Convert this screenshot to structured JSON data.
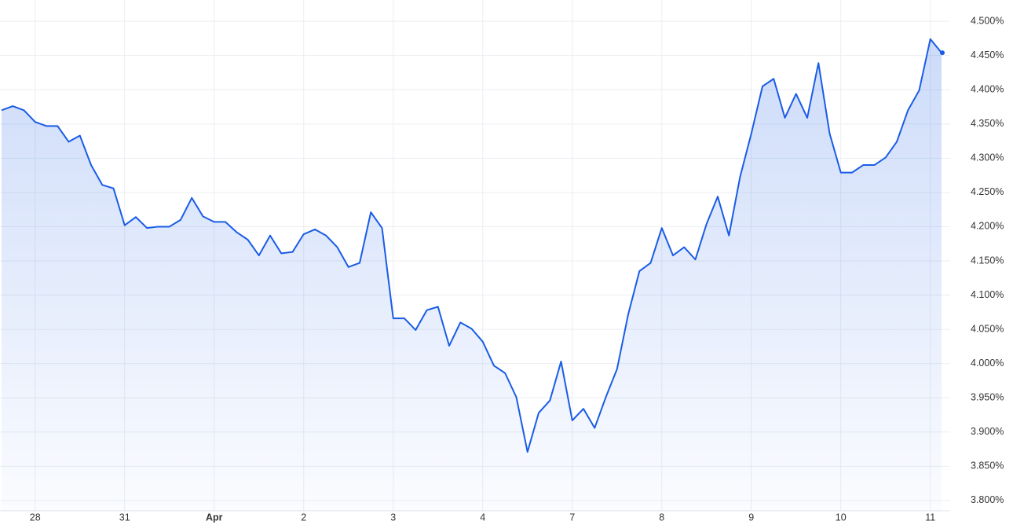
{
  "chart_data": {
    "type": "line",
    "categories": [
      null,
      null,
      null,
      "28",
      null,
      null,
      null,
      null,
      null,
      null,
      null,
      "31",
      null,
      null,
      null,
      null,
      null,
      null,
      null,
      "Apr",
      null,
      null,
      null,
      null,
      null,
      null,
      null,
      "2",
      null,
      null,
      null,
      null,
      null,
      null,
      null,
      "3",
      null,
      null,
      null,
      null,
      null,
      null,
      null,
      "4",
      null,
      null,
      null,
      null,
      null,
      null,
      null,
      "7",
      null,
      null,
      null,
      null,
      null,
      null,
      null,
      "8",
      null,
      null,
      null,
      null,
      null,
      null,
      null,
      "9",
      null,
      null,
      null,
      null,
      null,
      null,
      null,
      "10",
      null,
      null,
      null,
      null,
      null,
      null,
      null,
      "11",
      null
    ],
    "values": [
      4.37,
      4.376,
      4.37,
      4.353,
      4.347,
      4.347,
      4.324,
      4.333,
      4.29,
      4.261,
      4.256,
      4.202,
      4.214,
      4.198,
      4.2,
      4.2,
      4.21,
      4.242,
      4.215,
      4.207,
      4.207,
      4.192,
      4.181,
      4.158,
      4.187,
      4.161,
      4.163,
      4.189,
      4.196,
      4.187,
      4.17,
      4.141,
      4.147,
      4.221,
      4.198,
      4.066,
      4.066,
      4.049,
      4.078,
      4.083,
      4.026,
      4.06,
      4.051,
      4.032,
      3.997,
      3.986,
      3.951,
      3.871,
      3.928,
      3.946,
      4.003,
      3.917,
      3.934,
      3.906,
      3.951,
      3.992,
      4.072,
      4.135,
      4.147,
      4.198,
      4.158,
      4.17,
      4.152,
      4.204,
      4.244,
      4.187,
      4.273,
      4.336,
      4.405,
      4.416,
      4.359,
      4.394,
      4.359,
      4.439,
      4.336,
      4.279,
      4.279,
      4.29,
      4.29,
      4.301,
      4.324,
      4.37,
      4.399,
      4.474,
      4.454
    ],
    "color": "#1a5ce6",
    "ylim": [
      3.785,
      4.515
    ],
    "yticks": [
      {
        "value": 3.8,
        "label": "3.800%"
      },
      {
        "value": 3.85,
        "label": "3.850%"
      },
      {
        "value": 3.9,
        "label": "3.900%"
      },
      {
        "value": 3.95,
        "label": "3.950%"
      },
      {
        "value": 4.0,
        "label": "4.000%"
      },
      {
        "value": 4.05,
        "label": "4.050%"
      },
      {
        "value": 4.1,
        "label": "4.100%"
      },
      {
        "value": 4.15,
        "label": "4.150%"
      },
      {
        "value": 4.2,
        "label": "4.200%"
      },
      {
        "value": 4.25,
        "label": "4.250%"
      },
      {
        "value": 4.3,
        "label": "4.300%"
      },
      {
        "value": 4.35,
        "label": "4.350%"
      },
      {
        "value": 4.4,
        "label": "4.400%"
      },
      {
        "value": 4.45,
        "label": "4.450%"
      },
      {
        "value": 4.5,
        "label": "4.500%"
      }
    ],
    "grid": true
  }
}
